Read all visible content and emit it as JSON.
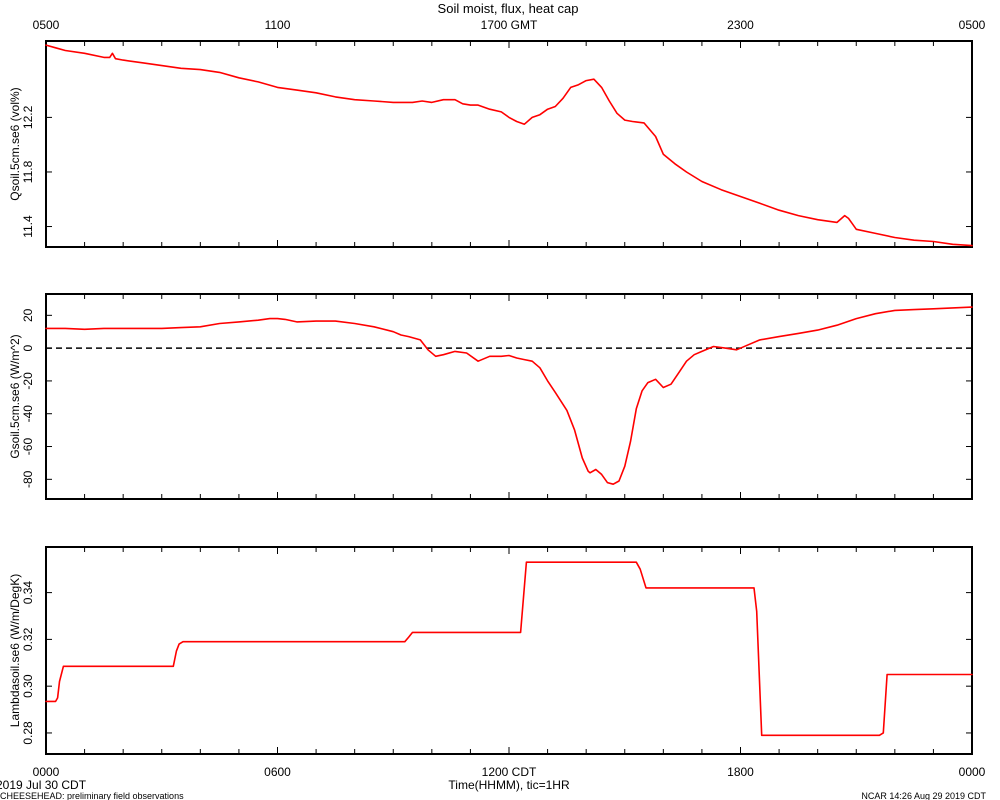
{
  "figure": {
    "title": "Soil moist, flux, heat cap",
    "top_axis_labels": [
      "0500",
      "1100",
      "1700 GMT",
      "2300",
      "0500"
    ],
    "bottom_axis_labels": [
      "0000",
      "0600",
      "1200 CDT",
      "1800",
      "0000"
    ],
    "xlabel": "Time(HHMM), tic=1HR",
    "date_label": "2019 Jul 30 CDT",
    "footer_left": "CHEESEHEAD: preliminary field observations",
    "footer_right": "NCAR 14:26 Aug 29 2019 CDT",
    "line_color": "#ff0000"
  },
  "chart_data": [
    {
      "type": "line",
      "ylabel": "Qsoil.5cm.se6 (vol%)",
      "xlim": [
        0,
        24
      ],
      "ylim": [
        11.25,
        12.76
      ],
      "yticks": [
        "11.4",
        "11.8",
        "12.2"
      ],
      "series": [
        {
          "x": [
            0,
            0.25,
            0.5,
            1,
            1.5,
            1.65,
            1.72,
            1.8,
            2,
            2.5,
            3,
            3.5,
            4,
            4.5,
            5,
            5.5,
            6,
            6.5,
            7,
            7.5,
            8,
            8.5,
            9,
            9.5,
            9.75,
            10,
            10.3,
            10.6,
            10.8,
            11,
            11.2,
            11.5,
            11.8,
            12,
            12.2,
            12.4,
            12.6,
            12.8,
            13,
            13.2,
            13.4,
            13.6,
            13.8,
            14,
            14.2,
            14.4,
            14.6,
            14.8,
            15,
            15.2,
            15.5,
            15.8,
            16,
            16.3,
            16.6,
            17,
            17.5,
            18,
            18.5,
            19,
            19.5,
            20,
            20.5,
            20.7,
            20.8,
            20.9,
            21,
            21.5,
            22,
            22.5,
            23,
            23.5,
            24
          ],
          "y": [
            12.73,
            12.71,
            12.69,
            12.67,
            12.64,
            12.64,
            12.67,
            12.63,
            12.62,
            12.6,
            12.58,
            12.56,
            12.55,
            12.53,
            12.49,
            12.46,
            12.42,
            12.4,
            12.38,
            12.35,
            12.33,
            12.32,
            12.31,
            12.31,
            12.32,
            12.31,
            12.33,
            12.33,
            12.3,
            12.29,
            12.29,
            12.26,
            12.24,
            12.2,
            12.17,
            12.15,
            12.2,
            12.22,
            12.26,
            12.28,
            12.34,
            12.42,
            12.44,
            12.47,
            12.48,
            12.42,
            12.32,
            12.23,
            12.18,
            12.17,
            12.16,
            12.06,
            11.93,
            11.86,
            11.8,
            11.73,
            11.67,
            11.62,
            11.57,
            11.52,
            11.48,
            11.45,
            11.43,
            11.48,
            11.46,
            11.42,
            11.38,
            11.35,
            11.32,
            11.3,
            11.29,
            11.27,
            11.26
          ]
        }
      ]
    },
    {
      "type": "line",
      "ylabel": "Gsoil.5cm.se6 (W/m^2)",
      "xlim": [
        0,
        24
      ],
      "ylim": [
        -92,
        33
      ],
      "yticks": [
        "-80",
        "-60",
        "-40",
        "-20",
        "0",
        "20"
      ],
      "zero_line": true,
      "series": [
        {
          "x": [
            0,
            0.5,
            1,
            1.5,
            2,
            2.5,
            3,
            3.5,
            4,
            4.5,
            5,
            5.5,
            5.8,
            6,
            6.2,
            6.5,
            7,
            7.5,
            8,
            8.5,
            9,
            9.2,
            9.4,
            9.7,
            9.9,
            10.1,
            10.3,
            10.6,
            10.9,
            11.2,
            11.5,
            11.8,
            12,
            12.2,
            12.4,
            12.6,
            12.8,
            13,
            13.2,
            13.5,
            13.7,
            13.9,
            14.05,
            14.1,
            14.25,
            14.4,
            14.55,
            14.7,
            14.85,
            15,
            15.15,
            15.3,
            15.45,
            15.6,
            15.8,
            16,
            16.2,
            16.4,
            16.6,
            16.8,
            17,
            17.3,
            17.6,
            17.9,
            18.2,
            18.5,
            19,
            19.5,
            20,
            20.5,
            21,
            21.5,
            22,
            22.5,
            23,
            23.5,
            24
          ],
          "y": [
            12,
            12,
            11.5,
            12,
            12,
            12,
            12,
            12.5,
            13,
            15,
            16,
            17,
            18,
            18,
            17.5,
            16,
            16.5,
            16.5,
            15,
            13,
            10,
            8,
            7,
            5,
            -1,
            -5,
            -4,
            -2,
            -3,
            -8,
            -5,
            -5,
            -4.5,
            -6,
            -7,
            -8,
            -12,
            -20,
            -27,
            -38,
            -50,
            -67,
            -75,
            -76,
            -74,
            -77,
            -82,
            -83,
            -81,
            -72,
            -57,
            -37,
            -26,
            -21,
            -19,
            -24,
            -22,
            -15,
            -8,
            -4,
            -2,
            1,
            0,
            -1,
            2,
            5,
            7,
            9,
            11,
            14,
            18,
            21,
            23,
            23.5,
            24,
            24.5,
            25
          ]
        }
      ]
    },
    {
      "type": "line",
      "ylabel": "Lambdasoil.se6 (W/m/DegK)",
      "xlim": [
        0,
        24
      ],
      "ylim": [
        0.271,
        0.3595
      ],
      "yticks": [
        "0.28",
        "0.30",
        "0.32",
        "0.34"
      ],
      "series": [
        {
          "x": [
            0,
            0.25,
            0.3,
            0.35,
            0.45,
            3.3,
            3.38,
            3.45,
            3.55,
            9.3,
            9.4,
            9.5,
            9.6,
            12.3,
            12.45,
            12.6,
            15.3,
            15.4,
            15.55,
            18.35,
            18.42,
            18.55,
            21.6,
            21.7,
            21.8,
            24
          ],
          "y": [
            0.2935,
            0.2935,
            0.295,
            0.302,
            0.3085,
            0.3085,
            0.315,
            0.318,
            0.319,
            0.319,
            0.321,
            0.323,
            0.323,
            0.323,
            0.353,
            0.353,
            0.353,
            0.35,
            0.342,
            0.342,
            0.332,
            0.279,
            0.279,
            0.28,
            0.305,
            0.305
          ]
        }
      ]
    }
  ]
}
